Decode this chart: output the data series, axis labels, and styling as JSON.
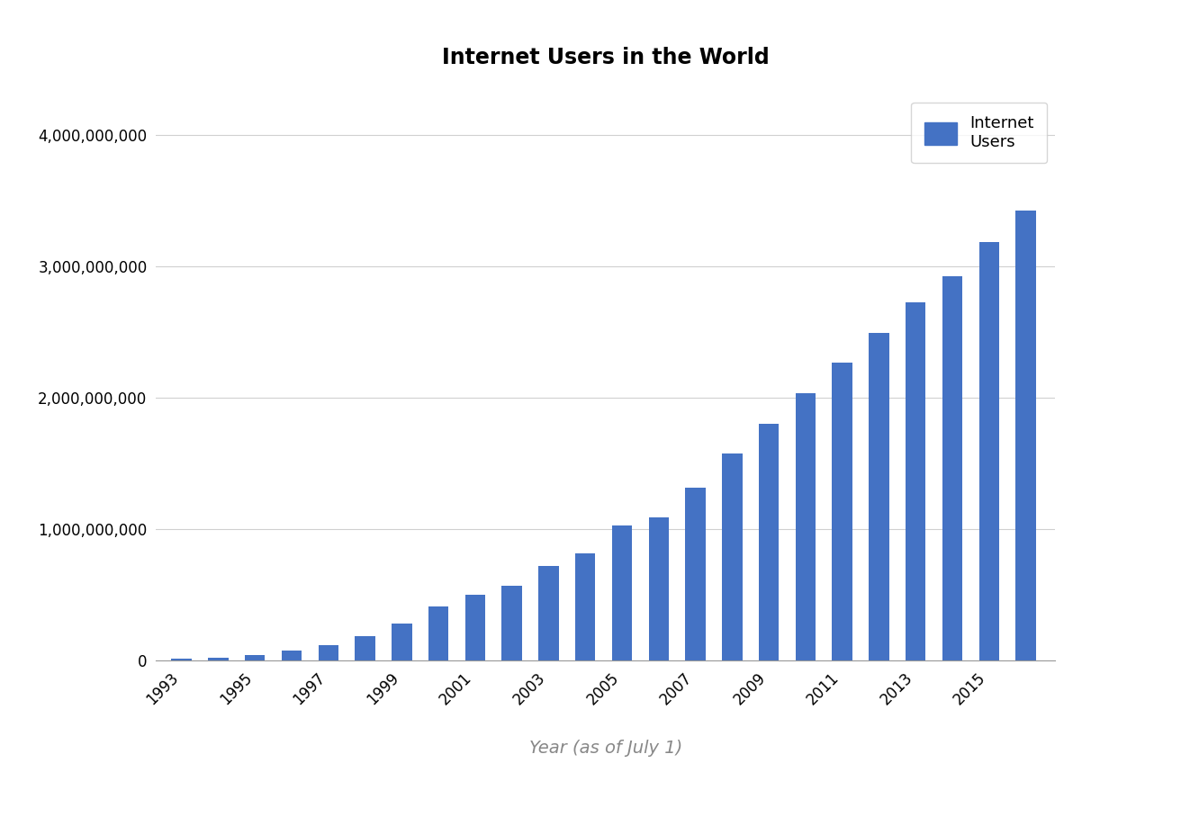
{
  "title": "Internet Users in the World",
  "xlabel": "Year (as of July 1)",
  "ylabel": "",
  "bar_color": "#4472c4",
  "background_color": "#ffffff",
  "legend_label": "Internet\nUsers",
  "years": [
    1993,
    1994,
    1995,
    1996,
    1997,
    1998,
    1999,
    2000,
    2001,
    2002,
    2003,
    2004,
    2005,
    2006,
    2007,
    2008,
    2009,
    2010,
    2011,
    2012,
    2013,
    2014,
    2015,
    2016
  ],
  "users": [
    14161572,
    25454590,
    44718800,
    77080126,
    120758310,
    188023930,
    280866670,
    413730528,
    501633879,
    569536461,
    718572900,
    817369400,
    1030000000,
    1093529850,
    1319872109,
    1574313000,
    1802330457,
    2034259365,
    2267233742,
    2494736248,
    2728000000,
    2925249355,
    3185996155,
    3424971237
  ],
  "ylim": [
    0,
    4400000000
  ],
  "yticks": [
    0,
    1000000000,
    2000000000,
    3000000000,
    4000000000
  ],
  "title_fontsize": 17,
  "tick_fontsize": 12,
  "legend_fontsize": 13,
  "xlabel_fontsize": 14,
  "bar_width": 0.55
}
